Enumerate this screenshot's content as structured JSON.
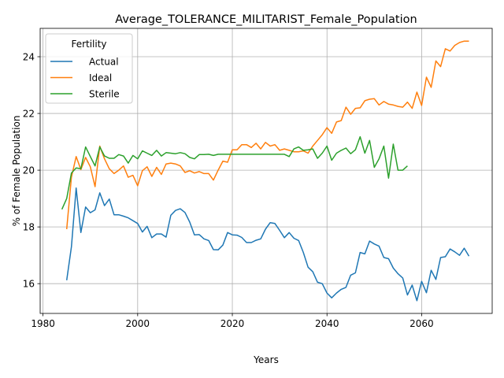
{
  "chart_data": {
    "type": "line",
    "title": "Average_TOLERANCE_MILITARIST_Female_Population",
    "xlabel": "Years",
    "ylabel": "% of Female Population",
    "xlim": [
      1979.4,
      2074.9
    ],
    "ylim": [
      14.95,
      25.0
    ],
    "xticks": [
      1980,
      2000,
      2020,
      2040,
      2060
    ],
    "yticks": [
      16,
      18,
      20,
      22,
      24
    ],
    "grid": true,
    "legend": {
      "title": "Fertility",
      "position": "top-left"
    },
    "colors": {
      "Actual": "#1f77b4",
      "Ideal": "#ff7f0e",
      "Sterile": "#2ca02c"
    },
    "series": [
      {
        "name": "Actual",
        "x": [
          1985,
          1986,
          1987,
          1988,
          1989,
          1990,
          1991,
          1992,
          1993,
          1994,
          1995,
          1996,
          1997,
          1998,
          1999,
          2000,
          2001,
          2002,
          2003,
          2004,
          2005,
          2006,
          2007,
          2008,
          2009,
          2010,
          2011,
          2012,
          2013,
          2014,
          2015,
          2016,
          2017,
          2018,
          2019,
          2020,
          2021,
          2022,
          2023,
          2024,
          2025,
          2026,
          2027,
          2028,
          2029,
          2030,
          2031,
          2032,
          2033,
          2034,
          2035,
          2036,
          2037,
          2038,
          2039,
          2040,
          2041,
          2042,
          2043,
          2044,
          2045,
          2046,
          2047,
          2048,
          2049,
          2050,
          2051,
          2052,
          2053,
          2054,
          2055,
          2056,
          2057,
          2058,
          2059,
          2060,
          2061,
          2062,
          2063,
          2064,
          2065,
          2066,
          2067,
          2068,
          2069,
          2070
        ],
        "values": [
          16.12,
          17.3,
          19.37,
          17.8,
          18.7,
          18.5,
          18.6,
          19.2,
          18.75,
          18.98,
          18.43,
          18.43,
          18.38,
          18.32,
          18.22,
          18.12,
          17.82,
          18.02,
          17.62,
          17.75,
          17.75,
          17.64,
          18.41,
          18.58,
          18.64,
          18.51,
          18.17,
          17.72,
          17.73,
          17.58,
          17.52,
          17.2,
          17.19,
          17.36,
          17.8,
          17.72,
          17.71,
          17.63,
          17.45,
          17.45,
          17.53,
          17.58,
          17.92,
          18.15,
          18.12,
          17.88,
          17.62,
          17.8,
          17.6,
          17.52,
          17.1,
          16.58,
          16.42,
          16.05,
          16.0,
          15.67,
          15.5,
          15.67,
          15.8,
          15.87,
          16.3,
          16.38,
          17.1,
          17.05,
          17.5,
          17.4,
          17.32,
          16.92,
          16.88,
          16.55,
          16.35,
          16.2,
          15.6,
          15.95,
          15.4,
          16.08,
          15.68,
          16.47,
          16.15,
          16.92,
          16.95,
          17.22,
          17.12,
          17.0,
          17.25,
          16.97
        ]
      },
      {
        "name": "Ideal",
        "x": [
          1985,
          1986,
          1987,
          1988,
          1989,
          1990,
          1991,
          1992,
          1993,
          1994,
          1995,
          1996,
          1997,
          1998,
          1999,
          2000,
          2001,
          2002,
          2003,
          2004,
          2005,
          2006,
          2007,
          2008,
          2009,
          2010,
          2011,
          2012,
          2013,
          2014,
          2015,
          2016,
          2017,
          2018,
          2019,
          2020,
          2021,
          2022,
          2023,
          2024,
          2025,
          2026,
          2027,
          2028,
          2029,
          2030,
          2031,
          2032,
          2033,
          2034,
          2035,
          2036,
          2037,
          2038,
          2039,
          2040,
          2041,
          2042,
          2043,
          2044,
          2045,
          2046,
          2047,
          2048,
          2049,
          2050,
          2051,
          2052,
          2053,
          2054,
          2055,
          2056,
          2057,
          2058,
          2059,
          2060,
          2061,
          2062,
          2063,
          2064,
          2065,
          2066,
          2067,
          2068,
          2069,
          2070
        ],
        "values": [
          17.92,
          19.75,
          20.48,
          20.02,
          20.45,
          20.12,
          19.42,
          20.85,
          20.4,
          20.05,
          19.88,
          20.0,
          20.15,
          19.75,
          19.82,
          19.45,
          19.98,
          20.12,
          19.78,
          20.1,
          19.85,
          20.22,
          20.25,
          20.22,
          20.15,
          19.92,
          19.98,
          19.9,
          19.95,
          19.88,
          19.88,
          19.65,
          20.0,
          20.32,
          20.28,
          20.72,
          20.72,
          20.9,
          20.9,
          20.8,
          20.95,
          20.75,
          20.98,
          20.85,
          20.9,
          20.7,
          20.75,
          20.7,
          20.65,
          20.65,
          20.68,
          20.6,
          20.85,
          21.05,
          21.25,
          21.5,
          21.3,
          21.7,
          21.75,
          22.22,
          21.97,
          22.18,
          22.2,
          22.45,
          22.5,
          22.52,
          22.3,
          22.42,
          22.33,
          22.3,
          22.25,
          22.22,
          22.4,
          22.18,
          22.75,
          22.28,
          23.28,
          22.92,
          23.85,
          23.65,
          24.28,
          24.2,
          24.4,
          24.5,
          24.55,
          24.55
        ]
      },
      {
        "name": "Sterile",
        "x": [
          1984,
          1985,
          1986,
          1987,
          1988,
          1989,
          1990,
          1991,
          1992,
          1993,
          1994,
          1995,
          1996,
          1997,
          1998,
          1999,
          2000,
          2001,
          2002,
          2003,
          2004,
          2005,
          2006,
          2007,
          2008,
          2009,
          2010,
          2011,
          2012,
          2013,
          2014,
          2015,
          2016,
          2017,
          2018,
          2019,
          2020,
          2021,
          2022,
          2023,
          2024,
          2025,
          2026,
          2027,
          2028,
          2029,
          2030,
          2031,
          2032,
          2033,
          2034,
          2035,
          2036,
          2037,
          2038,
          2039,
          2040,
          2041,
          2042,
          2043,
          2044,
          2045,
          2046,
          2047,
          2048,
          2049,
          2050,
          2051,
          2052,
          2053,
          2054,
          2055,
          2056,
          2057
        ],
        "values": [
          18.62,
          19.0,
          19.9,
          20.08,
          20.05,
          20.82,
          20.48,
          20.15,
          20.82,
          20.5,
          20.42,
          20.42,
          20.55,
          20.5,
          20.25,
          20.52,
          20.4,
          20.68,
          20.6,
          20.52,
          20.7,
          20.5,
          20.62,
          20.6,
          20.58,
          20.62,
          20.58,
          20.45,
          20.4,
          20.55,
          20.55,
          20.56,
          20.52,
          20.56,
          20.56,
          20.56,
          20.56,
          20.56,
          20.56,
          20.56,
          20.56,
          20.56,
          20.56,
          20.56,
          20.56,
          20.56,
          20.56,
          20.56,
          20.48,
          20.75,
          20.82,
          20.7,
          20.72,
          20.75,
          20.42,
          20.6,
          20.85,
          20.35,
          20.6,
          20.7,
          20.78,
          20.58,
          20.72,
          21.18,
          20.6,
          21.05,
          20.1,
          20.4,
          20.85,
          19.72,
          20.92,
          20.0,
          20.0,
          20.15
        ]
      }
    ]
  }
}
